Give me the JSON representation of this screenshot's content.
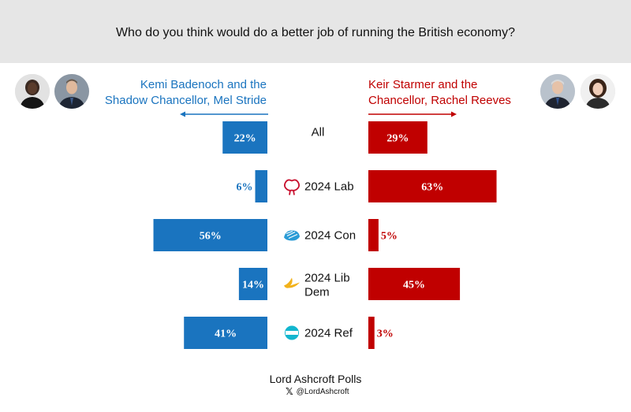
{
  "header": {
    "question": "Who do you think would do a better job of running the British economy?"
  },
  "left_side": {
    "label_line1": "Kemi Badenoch and the",
    "label_line2": "Shadow Chancellor, Mel Stride",
    "color": "#1a74bf"
  },
  "right_side": {
    "label_line1": "Keir Starmer and the",
    "label_line2": "Chancellor, Rachel Reeves",
    "color": "#c00000"
  },
  "footer": {
    "title": "Lord Ashcroft Polls",
    "handle": "@LordAshcroft",
    "icon": "x-logo-icon"
  },
  "chart_data": {
    "type": "bar",
    "orientation": "horizontal-diverging",
    "categories": [
      "All",
      "2024 Lab",
      "2024 Con",
      "2024 Lib Dem",
      "2024 Ref"
    ],
    "category_icons": [
      null,
      "labour-rose-icon",
      "conservative-tree-icon",
      "libdem-bird-icon",
      "reform-logo-icon"
    ],
    "series": [
      {
        "name": "Kemi Badenoch and the Shadow Chancellor, Mel Stride",
        "values": [
          22,
          6,
          56,
          14,
          41
        ],
        "color": "#1a74bf"
      },
      {
        "name": "Keir Starmer and the Chancellor, Rachel Reeves",
        "values": [
          29,
          63,
          5,
          45,
          3
        ],
        "color": "#c00000"
      }
    ],
    "unit": "%",
    "xlim": [
      0,
      100
    ],
    "grid": false
  }
}
